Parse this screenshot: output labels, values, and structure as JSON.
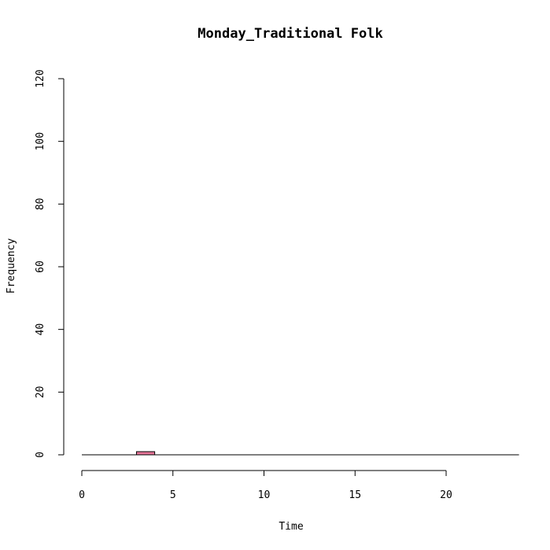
{
  "chart_data": {
    "type": "bar",
    "title": "Monday_Traditional Folk",
    "xlabel": "Time",
    "ylabel": "Frequency",
    "xlim": [
      0,
      24
    ],
    "ylim": [
      0,
      120
    ],
    "x_ticks": [
      0,
      5,
      10,
      15,
      20
    ],
    "y_ticks": [
      0,
      20,
      40,
      60,
      80,
      100,
      120
    ],
    "bins": [
      {
        "start": 0,
        "end": 1,
        "value": 0
      },
      {
        "start": 1,
        "end": 2,
        "value": 0
      },
      {
        "start": 2,
        "end": 3,
        "value": 0
      },
      {
        "start": 3,
        "end": 4,
        "value": 1
      },
      {
        "start": 4,
        "end": 5,
        "value": 0
      },
      {
        "start": 5,
        "end": 6,
        "value": 0
      },
      {
        "start": 6,
        "end": 7,
        "value": 0
      },
      {
        "start": 7,
        "end": 8,
        "value": 0
      },
      {
        "start": 8,
        "end": 9,
        "value": 0
      },
      {
        "start": 9,
        "end": 10,
        "value": 0
      },
      {
        "start": 10,
        "end": 11,
        "value": 0
      },
      {
        "start": 11,
        "end": 12,
        "value": 0
      },
      {
        "start": 12,
        "end": 13,
        "value": 0
      },
      {
        "start": 13,
        "end": 14,
        "value": 0
      },
      {
        "start": 14,
        "end": 15,
        "value": 0
      },
      {
        "start": 15,
        "end": 16,
        "value": 0
      },
      {
        "start": 16,
        "end": 17,
        "value": 0
      },
      {
        "start": 17,
        "end": 18,
        "value": 0
      },
      {
        "start": 18,
        "end": 19,
        "value": 0
      },
      {
        "start": 19,
        "end": 20,
        "value": 0
      },
      {
        "start": 20,
        "end": 21,
        "value": 0
      },
      {
        "start": 21,
        "end": 22,
        "value": 0
      },
      {
        "start": 22,
        "end": 23,
        "value": 0
      },
      {
        "start": 23,
        "end": 24,
        "value": 0
      }
    ],
    "bar_color": "#e8769a",
    "bar_stroke": "#000000",
    "grid": false,
    "legend": "none"
  }
}
